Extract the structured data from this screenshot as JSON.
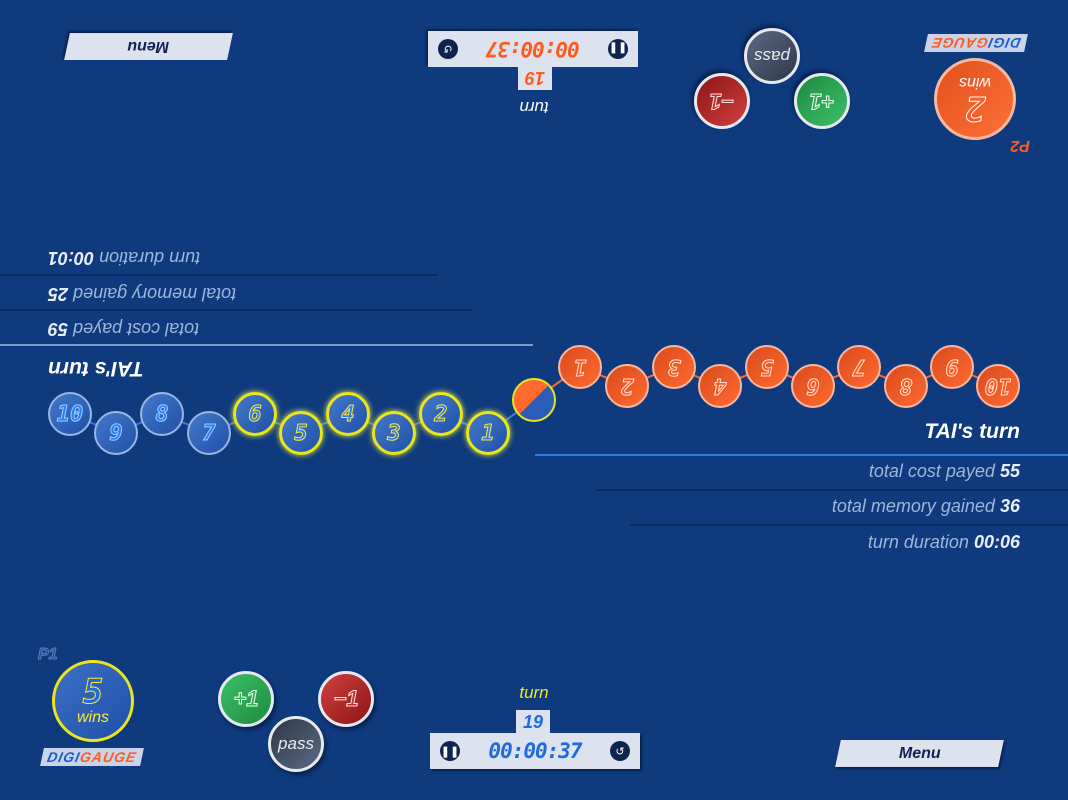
{
  "colors": {
    "background": "#0f3a7e",
    "p1": "#2a6ad0",
    "p1_highlight": "#e8e620",
    "p2": "#ff6a30"
  },
  "p1": {
    "label": "P1",
    "wins": "5",
    "wins_label": "wins",
    "logo_a": "DIGI",
    "logo_b": "GAUGE",
    "buttons": {
      "plus": "+1",
      "minus": "−1",
      "pass": "pass"
    },
    "turn_label": "turn",
    "turn_number": "19",
    "timer": "00:00:37",
    "icons": {
      "pause": "pause-icon",
      "reset": "undo-icon"
    },
    "menu": "Menu",
    "stats": {
      "heading": "TAI's turn",
      "cost_label": "total cost payed",
      "cost": "55",
      "memory_label": "total memory gained",
      "memory": "36",
      "duration_label": "turn duration",
      "duration": "00:06"
    },
    "gauge": [
      "1",
      "2",
      "3",
      "4",
      "5",
      "6",
      "7",
      "8",
      "9",
      "10"
    ],
    "highlighted_count": 6
  },
  "p2": {
    "label": "P2",
    "wins": "2",
    "wins_label": "wins",
    "logo_a": "DIGI",
    "logo_b": "GAUGE",
    "buttons": {
      "plus": "+1",
      "minus": "−1",
      "pass": "pass"
    },
    "turn_label": "turn",
    "turn_number": "19",
    "timer": "00:00:37",
    "icons": {
      "pause": "pause-icon",
      "reset": "undo-icon"
    },
    "menu": "Menu",
    "stats": {
      "heading": "TAI's turn",
      "cost_label": "total cost payed",
      "cost": "59",
      "memory_label": "total memory gained",
      "memory": "25",
      "duration_label": "turn duration",
      "duration": "00:01"
    },
    "gauge": [
      "1",
      "2",
      "3",
      "4",
      "5",
      "6",
      "7",
      "8",
      "9",
      "10"
    ],
    "highlighted_count": 0
  }
}
